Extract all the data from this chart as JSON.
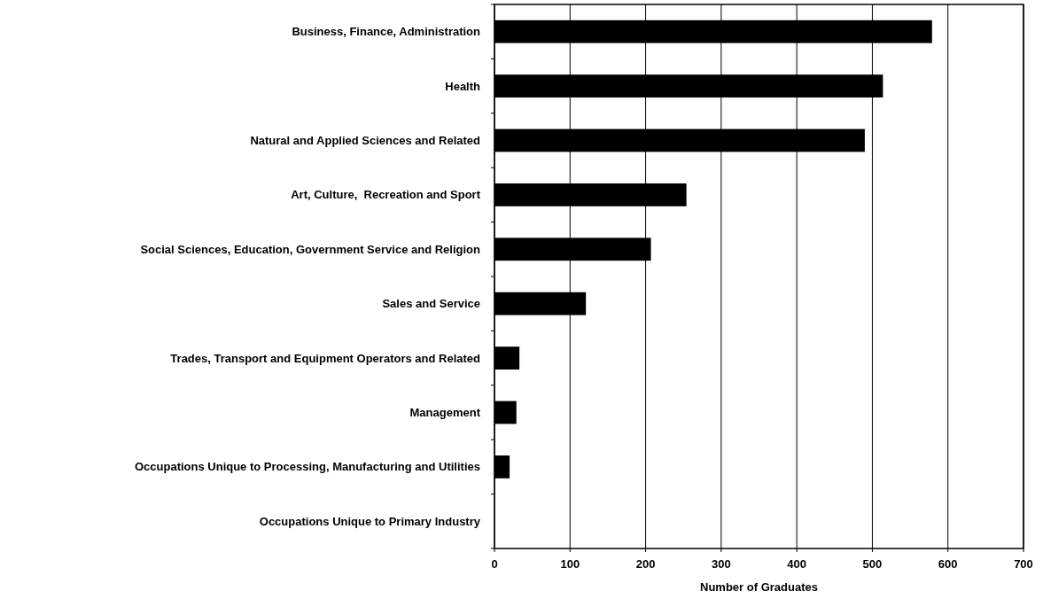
{
  "chart_data": {
    "type": "bar",
    "orientation": "horizontal",
    "xlabel": "Number of Graduates",
    "categories": [
      "Business, Finance, Administration",
      "Health",
      "Natural and Applied Sciences and Related",
      "Art, Culture,  Recreation and Sport",
      "Social Sciences, Education, Government Service and Religion",
      "Sales and Service",
      "Trades, Transport and Equipment Operators and Related",
      "Management",
      "Occupations Unique to Processing, Manufacturing and Utilities",
      "Occupations Unique to Primary Industry"
    ],
    "values": [
      579,
      514,
      490,
      254,
      207,
      121,
      33,
      29,
      20,
      0
    ],
    "color": "#000000",
    "xlim": [
      0,
      700
    ],
    "xticks": [
      0,
      100,
      200,
      300,
      400,
      500,
      600,
      700
    ],
    "grid": "x"
  }
}
